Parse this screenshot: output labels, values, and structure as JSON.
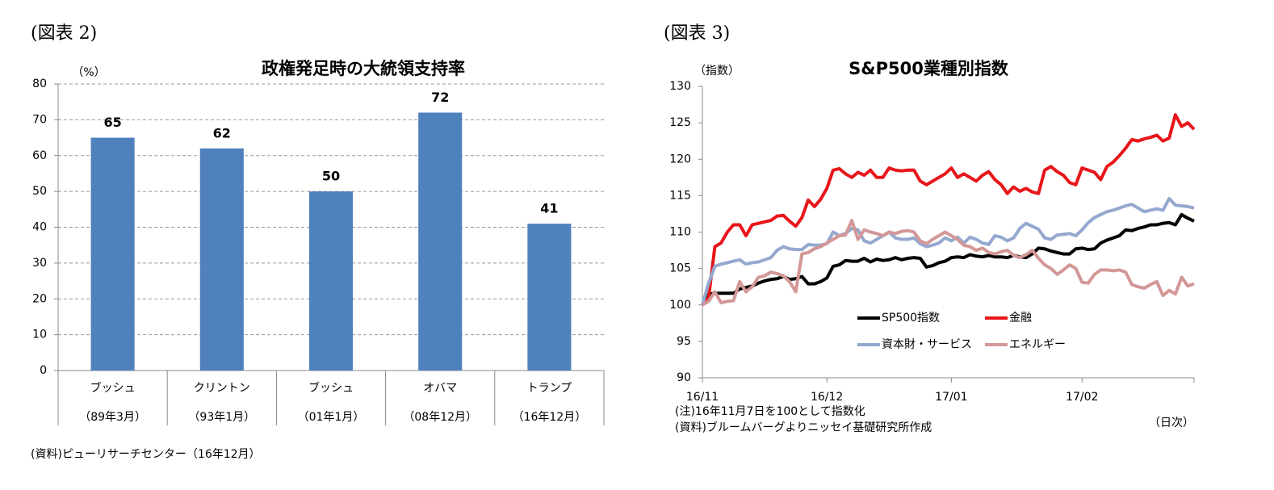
{
  "chart_data": [
    {
      "type": "bar",
      "figure_label": "(図表 2)",
      "title": "政権発足時の大統領支持率",
      "y_label": "（%）",
      "categories": [
        "ブッシュ",
        "クリントン",
        "ブッシュ",
        "オバマ",
        "トランプ"
      ],
      "sublabels": [
        "（89年3月）",
        "（93年1月）",
        "（01年1月）",
        "（08年12月）",
        "（16年12月）"
      ],
      "values": [
        65,
        62,
        50,
        72,
        41
      ],
      "color": "#4f81bd",
      "ylim": [
        0,
        80
      ],
      "yticks": [
        0,
        10,
        20,
        30,
        40,
        50,
        60,
        70,
        80
      ],
      "grid": true,
      "notes": [
        "(資料)ピューリサーチセンター（16年12月）"
      ]
    },
    {
      "type": "line",
      "figure_label": "(図表 3)",
      "title": "S&P500業種別指数",
      "y_label": "（指数）",
      "x_unit": "（日次）",
      "x": [
        "16/11",
        null,
        null,
        null,
        null,
        null,
        null,
        null,
        null,
        null,
        null,
        null,
        null,
        null,
        null,
        null,
        null,
        null,
        null,
        null,
        "16/12",
        null,
        null,
        null,
        null,
        null,
        null,
        null,
        null,
        null,
        null,
        null,
        null,
        null,
        null,
        null,
        null,
        null,
        null,
        null,
        "17/01",
        null,
        null,
        null,
        null,
        null,
        null,
        null,
        null,
        null,
        null,
        null,
        null,
        null,
        null,
        null,
        null,
        null,
        null,
        null,
        null,
        "17/02",
        null,
        null,
        null,
        null,
        null,
        null,
        null,
        null,
        null,
        null,
        null,
        null,
        null,
        null,
        null,
        null,
        null,
        null
      ],
      "series": [
        {
          "name": "SP500指数",
          "color": "#000000",
          "values": [
            100,
            101.5,
            101.6,
            101.6,
            101.6,
            101.6,
            102.2,
            102.4,
            102.6,
            103,
            103.3,
            103.5,
            103.6,
            103.9,
            103.5,
            103.6,
            103.9,
            102.9,
            102.9,
            103.2,
            103.7,
            105.3,
            105.5,
            106.1,
            106,
            106,
            106.4,
            105.9,
            106.3,
            106.1,
            106.2,
            106.5,
            106.2,
            106.4,
            106.5,
            106.4,
            105.2,
            105.4,
            105.8,
            106,
            106.5,
            106.6,
            106.5,
            106.9,
            106.7,
            106.6,
            106.8,
            106.6,
            106.6,
            106.5,
            106.8,
            106.6,
            106.5,
            107,
            107.8,
            107.7,
            107.4,
            107.2,
            107,
            107,
            107.7,
            107.8,
            107.6,
            107.7,
            108.5,
            108.9,
            109.2,
            109.5,
            110.3,
            110.2,
            110.5,
            110.7,
            111,
            111,
            111.2,
            111.3,
            111,
            112.4,
            111.9,
            111.5
          ]
        },
        {
          "name": "金融",
          "color": "#e8161b",
          "values": [
            100,
            101,
            108,
            108.5,
            110,
            111,
            111,
            109.5,
            111,
            111.2,
            111.4,
            111.6,
            112.2,
            112.3,
            111.5,
            110.8,
            112,
            114.4,
            113.5,
            114.5,
            116,
            118.5,
            118.7,
            118,
            117.5,
            118.2,
            117.8,
            118.5,
            117.5,
            117.5,
            118.8,
            118.5,
            118.4,
            118.5,
            118.5,
            117,
            116.5,
            117,
            117.5,
            118,
            118.8,
            117.5,
            118,
            117.5,
            117,
            117.8,
            118.3,
            117.2,
            116.5,
            115.3,
            116.2,
            115.6,
            116,
            115.5,
            115.3,
            118.5,
            119,
            118.3,
            117.8,
            116.8,
            116.5,
            118.8,
            118.5,
            118.2,
            117.2,
            119,
            119.6,
            120.5,
            121.5,
            122.7,
            122.5,
            122.8,
            123,
            123.3,
            122.5,
            122.9,
            126.1,
            124.5,
            125,
            124.1
          ]
        },
        {
          "name": "資本財・サービス",
          "color": "#95a8cf",
          "values": [
            100,
            103,
            105.3,
            105.6,
            105.8,
            106,
            106.2,
            105.6,
            105.8,
            105.9,
            106.2,
            106.5,
            107.5,
            108,
            107.7,
            107.6,
            107.6,
            108.3,
            108.2,
            108.2,
            108.4,
            110,
            109.5,
            109.8,
            110.5,
            110.3,
            108.8,
            108.5,
            109,
            109.5,
            110,
            109.2,
            109,
            109,
            109.2,
            108.4,
            108,
            108.2,
            108.5,
            109.2,
            108.8,
            109.3,
            108.5,
            109.3,
            109,
            108.5,
            108.3,
            109.5,
            109.3,
            108.8,
            109.2,
            110.5,
            111.2,
            110.8,
            110.4,
            109.2,
            109,
            109.6,
            109.7,
            109.8,
            109.5,
            110.3,
            111.3,
            112,
            112.4,
            112.8,
            113,
            113.3,
            113.6,
            113.8,
            113.3,
            112.8,
            113,
            113.2,
            113,
            114.6,
            113.7,
            113.6,
            113.5,
            113.3
          ]
        },
        {
          "name": "エネルギー",
          "color": "#d39797",
          "values": [
            100,
            100.5,
            101.8,
            100.3,
            100.5,
            100.6,
            103.2,
            101.8,
            102.5,
            103.8,
            104,
            104.5,
            104.3,
            104,
            103.2,
            101.8,
            107,
            107.2,
            107.7,
            108,
            108.5,
            109,
            109.5,
            109.6,
            111.6,
            109,
            110.3,
            110,
            109.8,
            109.5,
            110,
            109.8,
            110.1,
            110.2,
            110,
            108.8,
            108.4,
            109,
            109.5,
            110,
            109.5,
            109,
            108.2,
            108,
            107.5,
            107.8,
            107.2,
            107,
            107.3,
            107.5,
            106.8,
            106.5,
            106.9,
            107.5,
            106.4,
            105.5,
            105,
            104.2,
            104.8,
            105.5,
            105,
            103.1,
            103,
            104.2,
            104.8,
            104.8,
            104.7,
            104.8,
            104.5,
            102.8,
            102.5,
            102.3,
            102.8,
            103.2,
            101.3,
            102,
            101.5,
            103.8,
            102.6,
            102.9
          ]
        }
      ],
      "ylim": [
        90,
        130
      ],
      "yticks": [
        90,
        95,
        100,
        105,
        110,
        115,
        120,
        125,
        130
      ],
      "grid": false,
      "legend": "lower center",
      "notes": [
        "(注)16年11月7日を100として指数化",
        "(資料)ブルームバーグよりニッセイ基礎研究所作成"
      ]
    }
  ]
}
